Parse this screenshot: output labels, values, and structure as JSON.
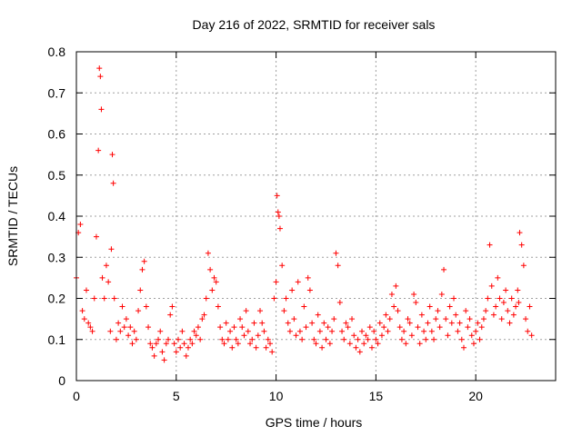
{
  "chart_data": {
    "type": "scatter",
    "title": "Day 216 of 2022, SRMTID for receiver sals",
    "xlabel": "GPS time / hours",
    "ylabel": "SRMTID / TECUs",
    "xlim": [
      0,
      24
    ],
    "ylim": [
      0,
      0.8
    ],
    "xticks": [
      0,
      5,
      10,
      15,
      20
    ],
    "xtick_labels": [
      "0",
      "5",
      "10",
      "15",
      "20"
    ],
    "yticks": [
      0,
      0.1,
      0.2,
      0.3,
      0.4,
      0.5,
      0.6,
      0.7,
      0.8
    ],
    "ytick_labels": [
      "0",
      "0.1",
      "0.2",
      "0.3",
      "0.4",
      "0.5",
      "0.6",
      "0.7",
      "0.8"
    ],
    "grid": true,
    "marker": "+",
    "color": "#ff0000",
    "series": [
      {
        "name": "SRMTID",
        "x": [
          0.0,
          0.1,
          0.2,
          0.3,
          0.4,
          0.5,
          0.6,
          0.7,
          0.8,
          0.9,
          1.0,
          1.1,
          1.15,
          1.2,
          1.25,
          1.3,
          1.4,
          1.5,
          1.6,
          1.7,
          1.75,
          1.8,
          1.85,
          1.9,
          2.0,
          2.1,
          2.2,
          2.3,
          2.4,
          2.5,
          2.6,
          2.7,
          2.8,
          2.9,
          3.0,
          3.1,
          3.2,
          3.3,
          3.4,
          3.5,
          3.6,
          3.7,
          3.8,
          3.9,
          4.0,
          4.1,
          4.2,
          4.3,
          4.4,
          4.5,
          4.6,
          4.7,
          4.8,
          4.9,
          5.0,
          5.1,
          5.2,
          5.3,
          5.4,
          5.5,
          5.6,
          5.7,
          5.8,
          5.9,
          6.0,
          6.1,
          6.2,
          6.3,
          6.4,
          6.5,
          6.6,
          6.7,
          6.8,
          6.9,
          7.0,
          7.1,
          7.2,
          7.3,
          7.4,
          7.5,
          7.6,
          7.7,
          7.8,
          7.9,
          8.0,
          8.1,
          8.2,
          8.3,
          8.4,
          8.5,
          8.6,
          8.7,
          8.8,
          8.9,
          9.0,
          9.1,
          9.2,
          9.3,
          9.4,
          9.5,
          9.6,
          9.7,
          9.8,
          9.9,
          10.0,
          10.05,
          10.1,
          10.15,
          10.2,
          10.3,
          10.4,
          10.5,
          10.6,
          10.7,
          10.8,
          10.9,
          11.0,
          11.1,
          11.2,
          11.3,
          11.4,
          11.5,
          11.6,
          11.7,
          11.8,
          11.9,
          12.0,
          12.1,
          12.2,
          12.3,
          12.4,
          12.5,
          12.6,
          12.7,
          12.8,
          12.9,
          13.0,
          13.1,
          13.2,
          13.3,
          13.4,
          13.5,
          13.6,
          13.7,
          13.8,
          13.9,
          14.0,
          14.1,
          14.2,
          14.3,
          14.4,
          14.5,
          14.6,
          14.7,
          14.8,
          14.9,
          15.0,
          15.1,
          15.2,
          15.3,
          15.4,
          15.5,
          15.6,
          15.7,
          15.8,
          15.9,
          16.0,
          16.1,
          16.2,
          16.3,
          16.4,
          16.5,
          16.6,
          16.7,
          16.8,
          16.9,
          17.0,
          17.1,
          17.2,
          17.3,
          17.4,
          17.5,
          17.6,
          17.7,
          17.8,
          17.9,
          18.0,
          18.1,
          18.2,
          18.3,
          18.4,
          18.5,
          18.6,
          18.7,
          18.8,
          18.9,
          19.0,
          19.1,
          19.2,
          19.3,
          19.4,
          19.5,
          19.6,
          19.7,
          19.8,
          19.9,
          20.0,
          20.1,
          20.2,
          20.3,
          20.4,
          20.5,
          20.6,
          20.7,
          20.8,
          20.9,
          21.0,
          21.1,
          21.2,
          21.3,
          21.4,
          21.5,
          21.6,
          21.7,
          21.8,
          21.9,
          22.0,
          22.1,
          22.15,
          22.2,
          22.3,
          22.4,
          22.5,
          22.6,
          22.7,
          22.8
        ],
        "y": [
          0.25,
          0.36,
          0.38,
          0.17,
          0.15,
          0.22,
          0.14,
          0.13,
          0.12,
          0.2,
          0.35,
          0.56,
          0.76,
          0.74,
          0.66,
          0.25,
          0.2,
          0.28,
          0.24,
          0.12,
          0.32,
          0.55,
          0.48,
          0.2,
          0.1,
          0.14,
          0.12,
          0.18,
          0.13,
          0.15,
          0.11,
          0.13,
          0.09,
          0.12,
          0.1,
          0.17,
          0.22,
          0.27,
          0.29,
          0.18,
          0.13,
          0.09,
          0.08,
          0.06,
          0.09,
          0.1,
          0.12,
          0.07,
          0.05,
          0.09,
          0.1,
          0.16,
          0.18,
          0.09,
          0.07,
          0.1,
          0.08,
          0.12,
          0.09,
          0.06,
          0.08,
          0.1,
          0.09,
          0.12,
          0.11,
          0.13,
          0.1,
          0.15,
          0.16,
          0.2,
          0.31,
          0.27,
          0.22,
          0.25,
          0.24,
          0.18,
          0.13,
          0.1,
          0.09,
          0.14,
          0.1,
          0.12,
          0.08,
          0.13,
          0.1,
          0.09,
          0.15,
          0.13,
          0.11,
          0.17,
          0.12,
          0.09,
          0.1,
          0.14,
          0.08,
          0.11,
          0.17,
          0.14,
          0.12,
          0.08,
          0.1,
          0.09,
          0.07,
          0.2,
          0.24,
          0.45,
          0.41,
          0.4,
          0.37,
          0.28,
          0.17,
          0.2,
          0.14,
          0.12,
          0.22,
          0.15,
          0.11,
          0.24,
          0.12,
          0.1,
          0.18,
          0.13,
          0.25,
          0.22,
          0.14,
          0.1,
          0.09,
          0.16,
          0.12,
          0.08,
          0.14,
          0.1,
          0.13,
          0.09,
          0.12,
          0.15,
          0.31,
          0.28,
          0.19,
          0.12,
          0.1,
          0.14,
          0.13,
          0.09,
          0.15,
          0.11,
          0.08,
          0.1,
          0.07,
          0.12,
          0.09,
          0.11,
          0.1,
          0.13,
          0.08,
          0.12,
          0.1,
          0.09,
          0.14,
          0.11,
          0.13,
          0.16,
          0.12,
          0.15,
          0.21,
          0.18,
          0.23,
          0.17,
          0.13,
          0.1,
          0.12,
          0.09,
          0.15,
          0.14,
          0.11,
          0.21,
          0.19,
          0.13,
          0.09,
          0.16,
          0.12,
          0.1,
          0.14,
          0.18,
          0.12,
          0.1,
          0.15,
          0.17,
          0.13,
          0.21,
          0.27,
          0.15,
          0.11,
          0.18,
          0.14,
          0.2,
          0.16,
          0.12,
          0.14,
          0.1,
          0.08,
          0.17,
          0.13,
          0.15,
          0.11,
          0.09,
          0.12,
          0.14,
          0.1,
          0.13,
          0.15,
          0.17,
          0.2,
          0.33,
          0.23,
          0.16,
          0.18,
          0.25,
          0.2,
          0.15,
          0.19,
          0.22,
          0.17,
          0.14,
          0.2,
          0.16,
          0.18,
          0.22,
          0.19,
          0.36,
          0.33,
          0.28,
          0.15,
          0.12,
          0.18,
          0.11
        ]
      }
    ]
  }
}
